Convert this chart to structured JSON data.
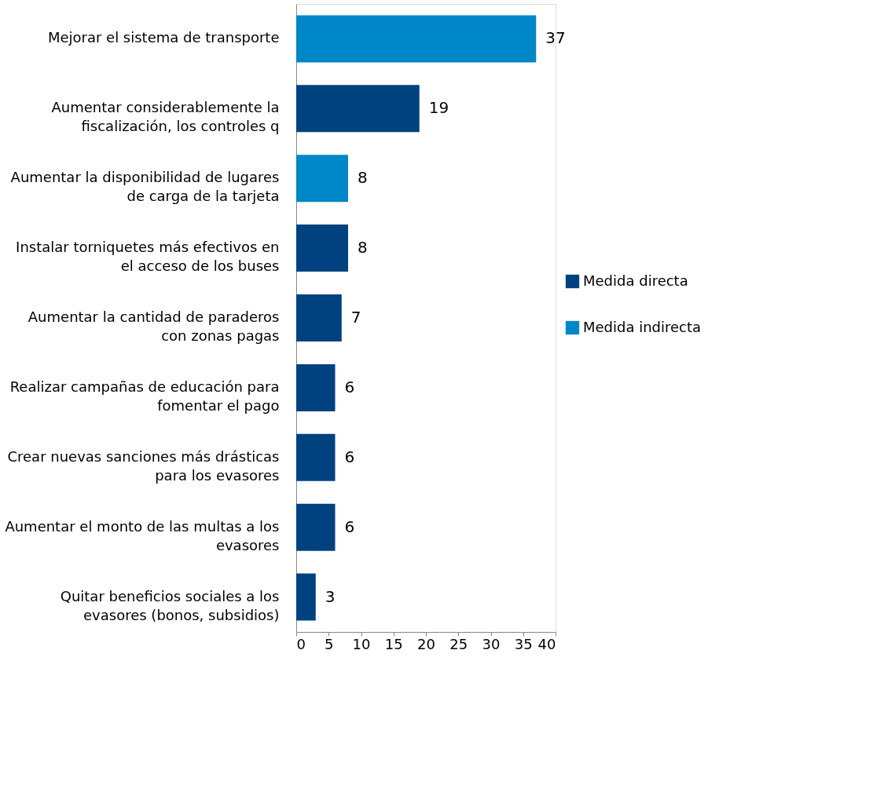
{
  "chart_data": {
    "type": "bar",
    "orientation": "horizontal",
    "categories": [
      "Mejorar el sistema de transporte",
      "Aumentar considerablemente la\nfiscalización, los controles q",
      "Aumentar la disponibilidad de lugares\nde carga de la tarjeta",
      "Instalar torniquetes más efectivos en\nel acceso de los buses",
      "Aumentar la cantidad de paraderos\ncon zonas pagas",
      "Realizar campañas de educación para\nfomentar el pago",
      "Crear nuevas sanciones más drásticas\npara los evasores",
      "Aumentar el monto de las multas a los\nevasores",
      "Quitar beneficios sociales a los\nevasores (bonos, subsidios)"
    ],
    "series": [
      {
        "name": "Medida directa",
        "color": "#00427f",
        "values": [
          null,
          19,
          null,
          8,
          7,
          6,
          6,
          6,
          3
        ]
      },
      {
        "name": "Medida indirecta",
        "color": "#0087c8",
        "values": [
          37,
          null,
          8,
          null,
          null,
          null,
          null,
          null,
          null
        ]
      }
    ],
    "xlim": [
      0,
      40
    ],
    "xticks": [
      0,
      5,
      10,
      15,
      20,
      25,
      30,
      35,
      40
    ],
    "data_labels": true,
    "grid": false,
    "legend": "right"
  }
}
